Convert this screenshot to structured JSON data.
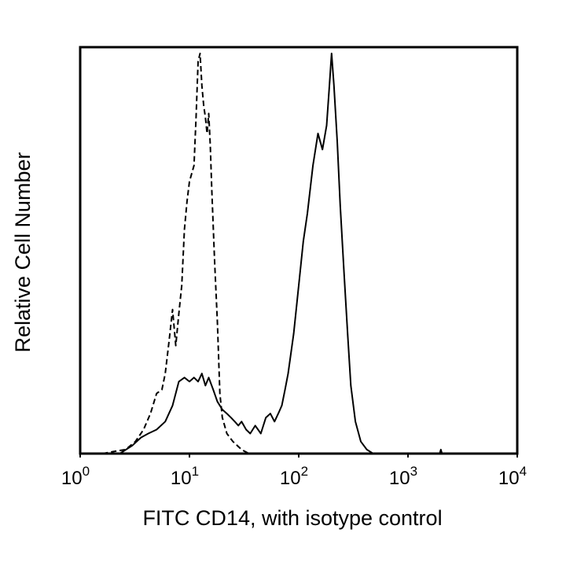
{
  "chart_data": {
    "type": "area",
    "xlabel": "FITC CD14, with isotype control",
    "ylabel": "Relative Cell Number",
    "x_scale": "log",
    "xlim": [
      1,
      10000
    ],
    "ylim": [
      0,
      100
    ],
    "grid": false,
    "x_ticks": [
      {
        "value": 1,
        "base": "10",
        "exp": "0"
      },
      {
        "value": 10,
        "base": "10",
        "exp": "1"
      },
      {
        "value": 100,
        "base": "10",
        "exp": "2"
      },
      {
        "value": 1000,
        "base": "10",
        "exp": "3"
      },
      {
        "value": 10000,
        "base": "10",
        "exp": "4"
      }
    ],
    "series": [
      {
        "style": "dashed",
        "color": "#000000",
        "x": [
          1.6,
          2.0,
          2.6,
          3.2,
          3.8,
          4.4,
          5.0,
          5.6,
          6.0,
          6.5,
          7.0,
          7.5,
          8.0,
          8.5,
          9.0,
          9.5,
          10.0,
          10.5,
          11.0,
          11.5,
          12.0,
          12.5,
          13.0,
          13.5,
          14.0,
          14.5,
          15.0,
          15.5,
          16.0,
          17.0,
          18.0,
          19.0,
          20.0,
          22.0,
          25.0,
          30.0,
          35.0
        ],
        "y": [
          0,
          0.5,
          1,
          3,
          6,
          10,
          15,
          16,
          20,
          28,
          36,
          27,
          35,
          42,
          56,
          63,
          68,
          70,
          72,
          84,
          98,
          100,
          92,
          87,
          84,
          80,
          85,
          77,
          66,
          48,
          33,
          15,
          9,
          5,
          3,
          1,
          0
        ]
      },
      {
        "style": "solid",
        "color": "#000000",
        "x": [
          2.3,
          3.0,
          3.6,
          4.2,
          5.0,
          6.0,
          7.0,
          8.0,
          9.0,
          10.0,
          11.0,
          12.0,
          13.0,
          14.0,
          15.0,
          16.5,
          18.0,
          20.0,
          22.0,
          24.0,
          26.0,
          28.0,
          30.0,
          33.0,
          36.0,
          40.0,
          45.0,
          50.0,
          55.0,
          60.0,
          65.0,
          70.0,
          75.0,
          80.0,
          90.0,
          100.0,
          110.0,
          120.0,
          135.0,
          150.0,
          165.0,
          180.0,
          190.0,
          200.0,
          210.0,
          225.0,
          240.0,
          260.0,
          280.0,
          300.0,
          330.0,
          370.0,
          420.0,
          480.0,
          1950.0,
          2000.0,
          2050.0
        ],
        "y": [
          0,
          2,
          4,
          5,
          6,
          8,
          12,
          18,
          19,
          18,
          19,
          18,
          20,
          17,
          19,
          16,
          13,
          11,
          10,
          9,
          8,
          7,
          8,
          6,
          5,
          7,
          5,
          9,
          10,
          8,
          10,
          12,
          16,
          20,
          30,
          42,
          53,
          60,
          72,
          80,
          76,
          82,
          91,
          100,
          92,
          78,
          62,
          45,
          30,
          17,
          8,
          3,
          1,
          0,
          0,
          1,
          0
        ]
      }
    ]
  }
}
